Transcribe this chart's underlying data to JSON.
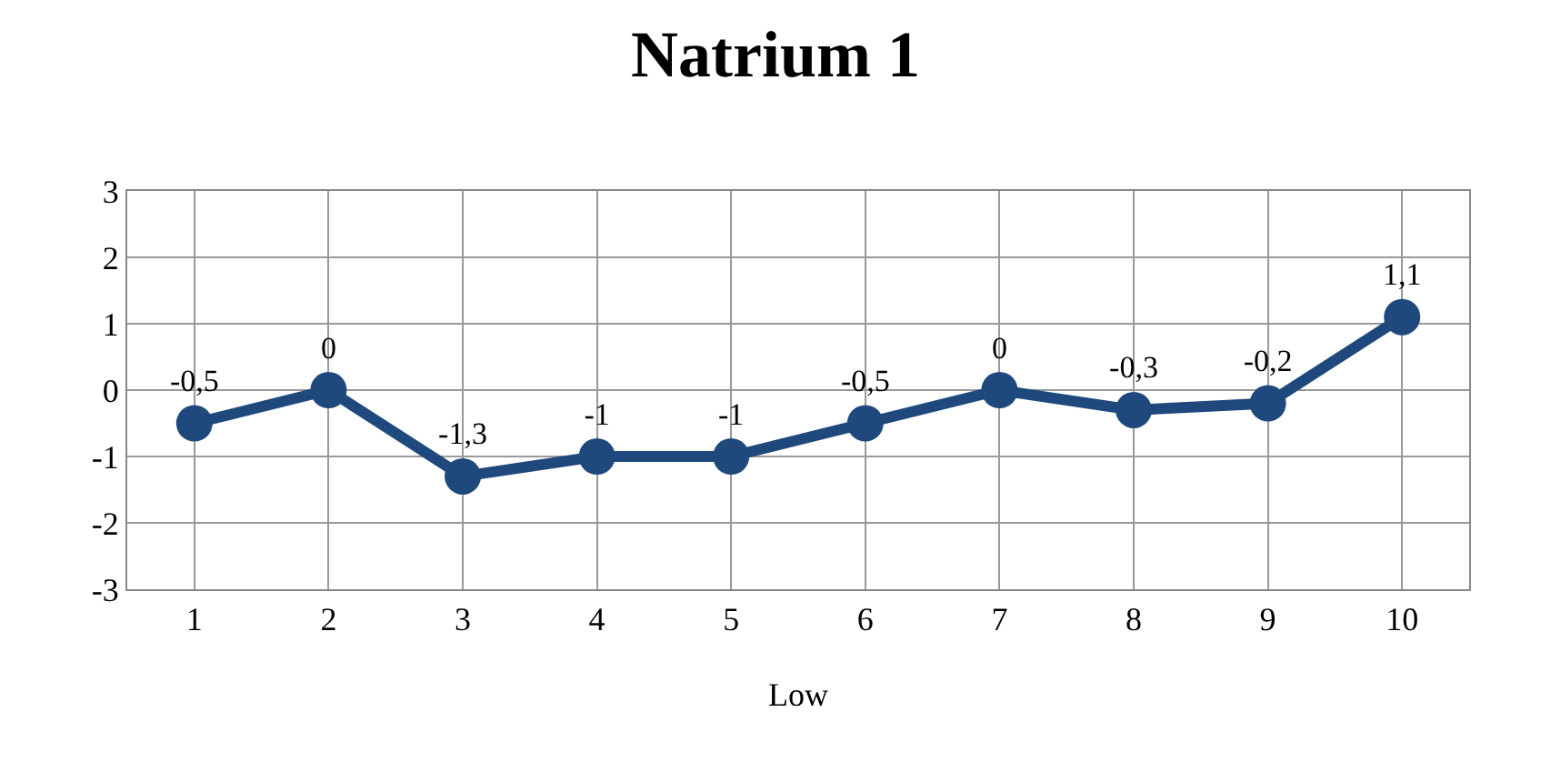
{
  "chart_data": {
    "type": "line",
    "title": "Natrium 1",
    "xlabel": "Low",
    "categories": [
      "1",
      "2",
      "3",
      "4",
      "5",
      "6",
      "7",
      "8",
      "9",
      "10"
    ],
    "series": [
      {
        "color": "#1f497d",
        "values": [
          -0.5,
          0,
          -1.3,
          -1,
          -1,
          -0.5,
          0,
          -0.3,
          -0.2,
          1.1
        ],
        "value_labels": [
          "-0,5",
          "0",
          "-1,3",
          "-1",
          "-1",
          "-0,5",
          "0",
          "-0,3",
          "-0,2",
          "1,1"
        ]
      }
    ],
    "ylim": [
      -3,
      3
    ],
    "yticks": [
      -3,
      -2,
      -1,
      0,
      1,
      2,
      3
    ],
    "grid": true,
    "marker": "circle",
    "line_style": "solid"
  }
}
